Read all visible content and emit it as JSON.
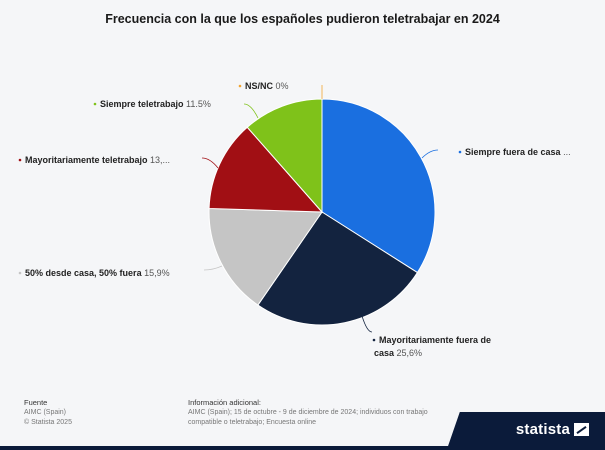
{
  "chart_data": {
    "type": "pie",
    "title": "Frecuencia con la que los españoles pudieron teletrabajar en 2024",
    "slices": [
      {
        "label": "Siempre fuera de casa",
        "value_text": "...",
        "value": 34.0,
        "color": "#1a6fe0"
      },
      {
        "label": "Mayoritariamente fuera de casa",
        "value_text": "25,6%",
        "value": 25.6,
        "color": "#13233f"
      },
      {
        "label": "50% desde casa, 50% fuera",
        "value_text": "15,9%",
        "value": 15.9,
        "color": "#c5c5c5"
      },
      {
        "label": "Mayoritariamente teletrabajo",
        "value_text": "13,...",
        "value": 13.0,
        "color": "#a10f14"
      },
      {
        "label": "Siempre teletrabajo",
        "value_text": "11.5%",
        "value": 11.5,
        "color": "#7fc21a"
      },
      {
        "label": "NS/NC",
        "value_text": "0%",
        "value": 0,
        "color": "#f1a532"
      }
    ]
  },
  "footer": {
    "source_heading": "Fuente",
    "source_lines": [
      "AIMC (Spain)",
      "© Statista 2025"
    ],
    "info_heading": "Información adicional:",
    "info_text": "AIMC (Spain); 15 de octubre - 9 de diciembre de 2024; individuos con trabajo compatible o teletrabajo; Encuesta online"
  },
  "brand": "statista"
}
